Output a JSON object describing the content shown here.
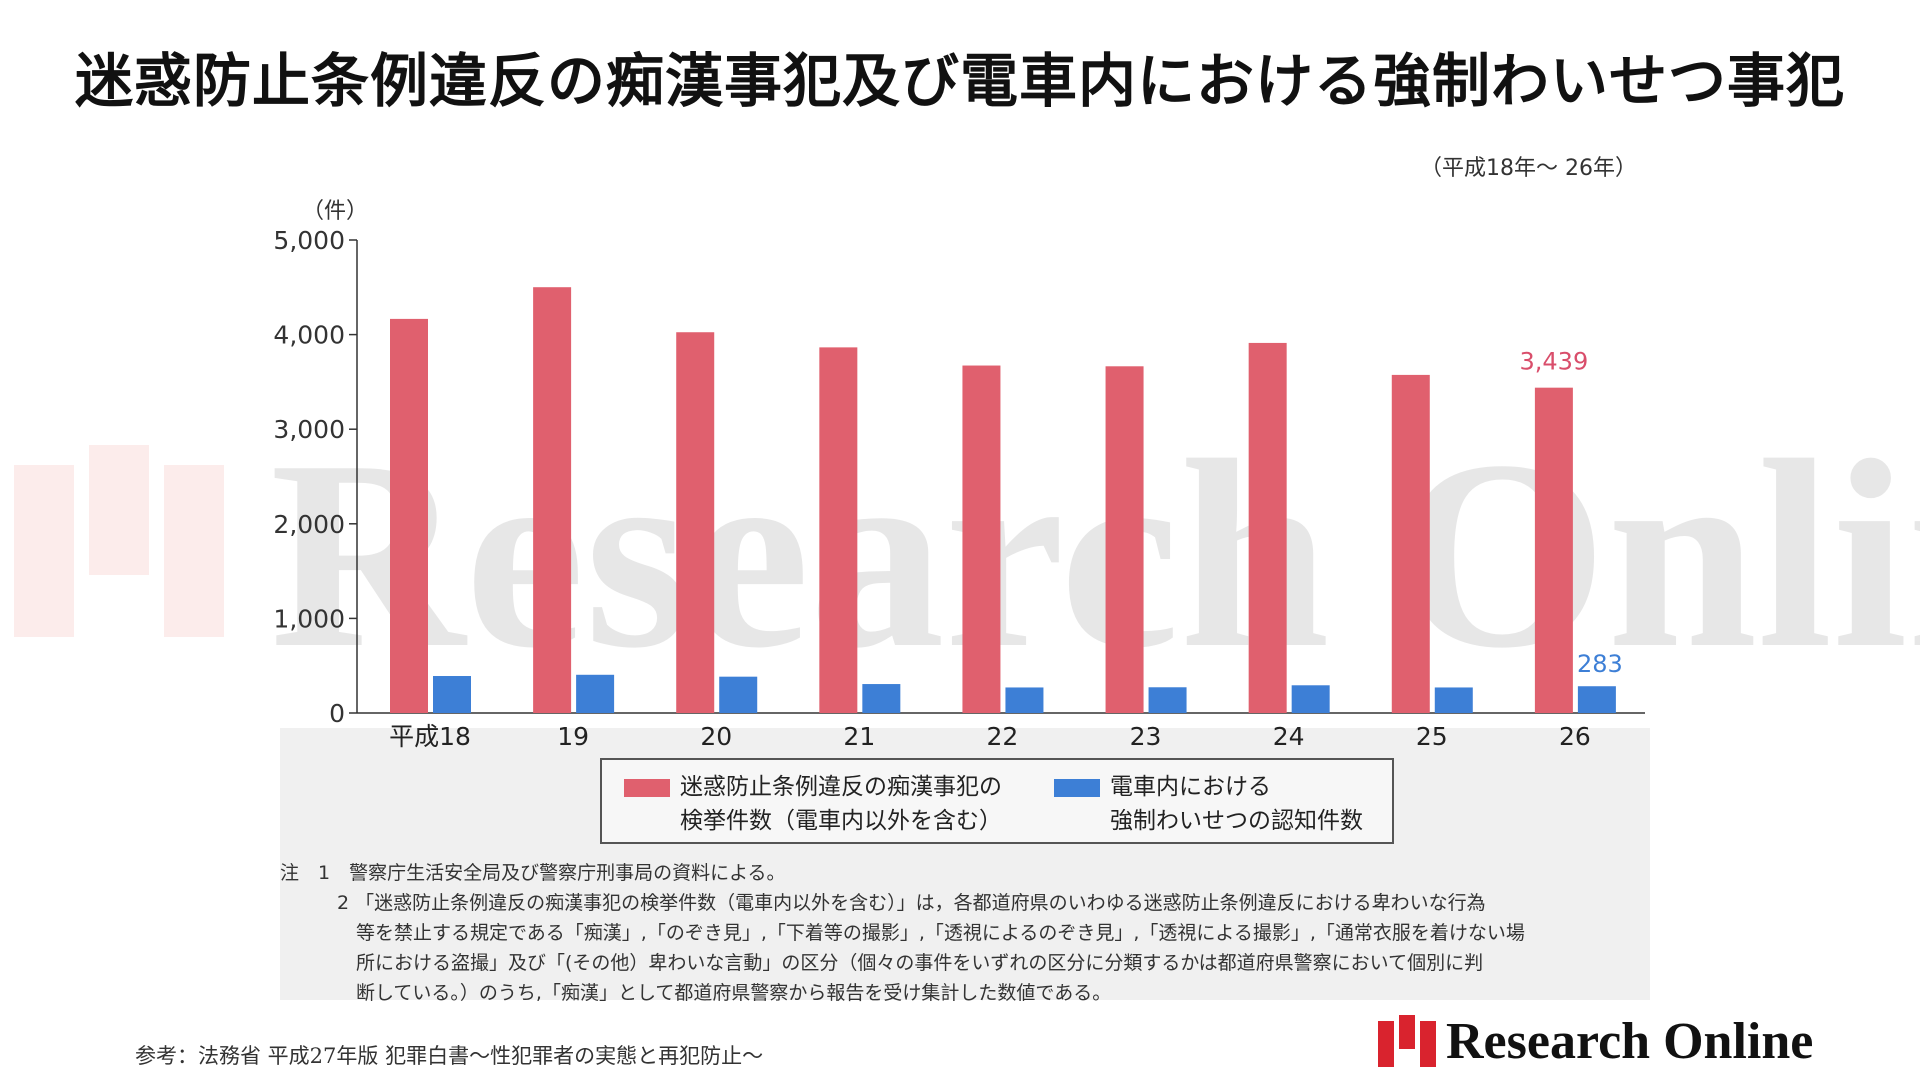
{
  "title": "迷惑防止条例違反の痴漢事犯及び電車内における強制わいせつ事犯",
  "period": "（平成18年～ 26年）",
  "chart_data": {
    "type": "bar",
    "ylabel": "（件）",
    "ylim": [
      0,
      5000
    ],
    "yticks": [
      "5,000",
      "4,000",
      "3,000",
      "2,000",
      "1,000",
      "0"
    ],
    "categories": [
      "平成18",
      "19",
      "20",
      "21",
      "22",
      "23",
      "24",
      "25",
      "26"
    ],
    "series": [
      {
        "name": "迷惑防止条例違反の痴漢事犯の検挙件数（電車内以外を含む）",
        "color": "#e0606e",
        "values": [
          4166,
          4501,
          4025,
          3865,
          3673,
          3665,
          3912,
          3574,
          3439
        ]
      },
      {
        "name": "電車内における強制わいせつの認知件数",
        "color": "#3d7fd6",
        "values": [
          391,
          404,
          384,
          306,
          270,
          272,
          293,
          270,
          283
        ]
      }
    ],
    "annotations": [
      "3,439",
      "283"
    ],
    "grid": false,
    "legend_position": "bottom"
  },
  "legend": {
    "item1_line1": "迷惑防止条例違反の痴漢事犯の",
    "item1_line2": "検挙件数（電車内以外を含む）",
    "item2_line1": "電車内における",
    "item2_line2": "強制わいせつの認知件数"
  },
  "notes": {
    "n1": "注　1　警察庁生活安全局及び警察庁刑事局の資料による。",
    "n2a": "　　　2 「迷惑防止条例違反の痴漢事犯の検挙件数（電車内以外を含む）」は，各都道府県のいわゆる迷惑防止条例違反における卑わいな行為",
    "n2b": "　　　　等を禁止する規定である「痴漢」,「のぞき見」,「下着等の撮影」,「透視によるのぞき見」,「透視による撮影」,「通常衣服を着けない場",
    "n2c": "　　　　所における盗撮」及び「(その他）卑わいな言動」の区分（個々の事件をいずれの区分に分類するかは都道府県警察において個別に判",
    "n2d": "　　　　断している。）のうち,「痴漢」として都道府県警察から報告を受け集計した数値である。"
  },
  "source": "参考：法務省 平成27年版 犯罪白書〜性犯罪者の実態と再犯防止〜",
  "logo": {
    "text": "Research Online",
    "color": "#d9232e"
  },
  "watermark": "Research Online"
}
